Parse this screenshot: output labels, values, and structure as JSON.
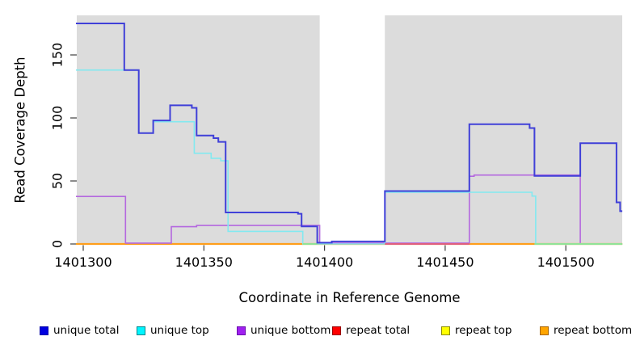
{
  "figure": {
    "x_axis_title": "Coordinate in Reference Genome",
    "y_axis_title": "Read Coverage Depth"
  },
  "chart_data": {
    "type": "line",
    "subtype": "step-coverage-plot",
    "title": "",
    "xlabel": "Coordinate in Reference Genome",
    "ylabel": "Read Coverage Depth",
    "xlim": [
      1401297,
      1401523.4
    ],
    "ylim": [
      0,
      181
    ],
    "x_ticks": [
      1401300,
      1401350,
      1401400,
      1401450,
      1401500
    ],
    "y_ticks": [
      0,
      50,
      100,
      150
    ],
    "grid": false,
    "legend_position": "bottom",
    "plot_bg_color": "#DCDCDC",
    "masked_region": {
      "from": 1401398,
      "to": 1401425,
      "color": "#FFFFFF"
    },
    "series": [
      {
        "name": "repeat total",
        "line_color": "#E0607E",
        "step_points": [
          [
            1401297,
            0
          ]
        ],
        "extend_to_end": true
      },
      {
        "name": "repeat top",
        "line_color": "#F5E642",
        "step_points": [
          [
            1401297,
            0
          ]
        ],
        "extend_to_end": true
      },
      {
        "name": "repeat bottom",
        "line_color": "#FF9E1B",
        "step_points": [
          [
            1401297,
            0
          ]
        ],
        "extend_to_end": true
      },
      {
        "name": "unique bottom",
        "line_color": "#B468DF",
        "step_points": [
          [
            1401297,
            37
          ],
          [
            1401317.5,
            0
          ],
          [
            1401336.5,
            13
          ],
          [
            1401347,
            14
          ],
          [
            1401398,
            0
          ],
          [
            1401460,
            53
          ],
          [
            1401462,
            54
          ],
          [
            1401506,
            0
          ]
        ],
        "extend_to_end": false
      },
      {
        "name": "unique top",
        "line_color": "#82E9F0",
        "step_points": [
          [
            1401297,
            138
          ],
          [
            1401323,
            88
          ],
          [
            1401329,
            97
          ],
          [
            1401346,
            72
          ],
          [
            1401353,
            68
          ],
          [
            1401357,
            66
          ],
          [
            1401360,
            10
          ],
          [
            1401391,
            0
          ],
          [
            1401425,
            41
          ],
          [
            1401486,
            38
          ],
          [
            1401487.5,
            0
          ]
        ],
        "extend_to_end": true
      },
      {
        "name": "unique total",
        "line_color": "#4040D8",
        "step_points": [
          [
            1401297,
            175
          ],
          [
            1401317,
            138
          ],
          [
            1401323,
            88
          ],
          [
            1401329,
            98
          ],
          [
            1401336,
            110
          ],
          [
            1401345,
            108
          ],
          [
            1401347,
            86
          ],
          [
            1401354,
            84
          ],
          [
            1401356,
            81
          ],
          [
            1401359,
            25
          ],
          [
            1401389,
            24
          ],
          [
            1401390.5,
            14
          ],
          [
            1401397,
            1
          ],
          [
            1401403,
            2
          ],
          [
            1401425,
            42
          ],
          [
            1401460,
            95
          ],
          [
            1401485,
            92
          ],
          [
            1401487,
            54
          ],
          [
            1401506,
            80
          ],
          [
            1401521,
            33
          ],
          [
            1401522.5,
            26
          ]
        ],
        "extend_to_end": true
      }
    ],
    "baseline_overlays": [
      {
        "from": 1401391,
        "to": 1401397,
        "value": 0,
        "color": "#8FE397"
      },
      {
        "from": 1401425,
        "to": 1401460,
        "value": 0,
        "color": "#E0607E"
      },
      {
        "from": 1401487,
        "to": 1401523.4,
        "value": 0,
        "color": "#8FE397"
      }
    ]
  },
  "legend": {
    "items": [
      {
        "label": "unique total",
        "fill": "#0000E0",
        "border": "#0000A8"
      },
      {
        "label": "unique top",
        "fill": "#00F5FF",
        "border": "#00868B"
      },
      {
        "label": "unique bottom",
        "fill": "#A020F0",
        "border": "#6A0DAD"
      },
      {
        "label": "repeat total",
        "fill": "#FF0000",
        "border": "#990000"
      },
      {
        "label": "repeat top",
        "fill": "#FFFF00",
        "border": "#8B8B00"
      },
      {
        "label": "repeat bottom",
        "fill": "#FFA500",
        "border": "#A86400"
      }
    ]
  }
}
